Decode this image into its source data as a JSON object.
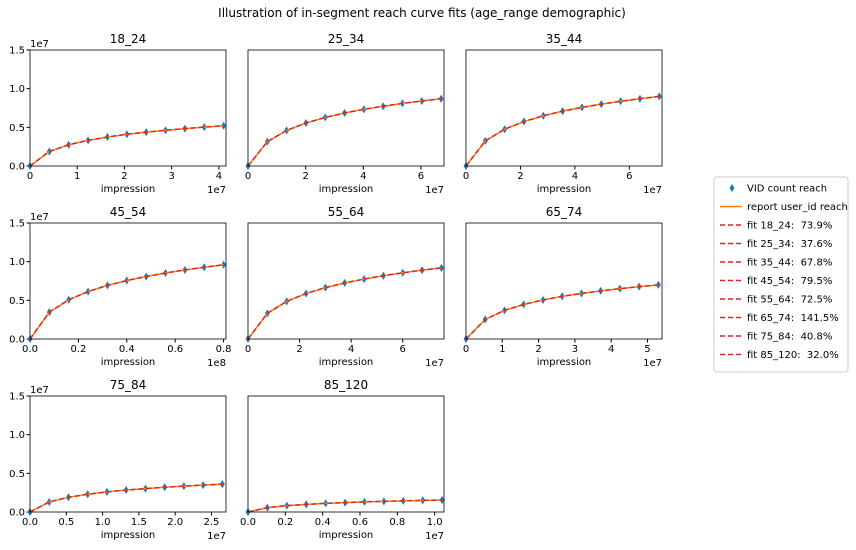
{
  "title": "Illustration of in-segment reach curve fits (age_range demographic)",
  "legend_corner": "right",
  "chart_data": [
    {
      "type": "line",
      "title": "18_24",
      "x_label": "impression",
      "x_offset": "1e7",
      "y_offset": "1e7",
      "x": [
        0,
        0.41,
        0.82,
        1.23,
        1.64,
        2.05,
        2.46,
        2.87,
        3.28,
        3.69,
        4.1
      ],
      "xlim": [
        0,
        4.15
      ],
      "xticks": [
        0,
        1,
        2,
        3,
        4
      ],
      "ylim": [
        0,
        1.5
      ],
      "yticks": [
        {
          "value": 0,
          "label": "0.0"
        },
        0.5,
        {
          "value": 1,
          "label": "1.0"
        },
        1.5
      ],
      "series": [
        {
          "name": "VID count reach",
          "style": "scatter",
          "color": "#1f77b4",
          "values": [
            0,
            0.188,
            0.275,
            0.332,
            0.375,
            0.41,
            0.438,
            0.462,
            0.484,
            0.503,
            0.52
          ]
        },
        {
          "name": "report user_id reach",
          "style": "line",
          "color": "#ff7f0e",
          "values": [
            0,
            0.188,
            0.275,
            0.332,
            0.375,
            0.41,
            0.438,
            0.462,
            0.484,
            0.503,
            0.52
          ]
        },
        {
          "name": "fit 18_24:  73.9%",
          "style": "dashed",
          "color": "#d62728",
          "values": [
            0,
            0.188,
            0.275,
            0.332,
            0.375,
            0.41,
            0.438,
            0.462,
            0.484,
            0.503,
            0.52
          ]
        }
      ]
    },
    {
      "type": "line",
      "title": "25_34",
      "x_label": "impression",
      "x_offset": "1e7",
      "x": [
        0,
        0.67,
        1.34,
        2.01,
        2.68,
        3.35,
        4.02,
        4.69,
        5.36,
        6.03,
        6.7
      ],
      "xlim": [
        0,
        6.8
      ],
      "xticks": [
        0,
        2,
        4,
        6
      ],
      "ylim": [
        0,
        1.5
      ],
      "series": [
        {
          "style": "scatter",
          "color": "#1f77b4",
          "values": [
            0,
            0.314,
            0.46,
            0.556,
            0.628,
            0.686,
            0.733,
            0.773,
            0.809,
            0.841,
            0.87
          ]
        },
        {
          "style": "line",
          "color": "#ff7f0e",
          "values": [
            0,
            0.314,
            0.46,
            0.556,
            0.628,
            0.686,
            0.733,
            0.773,
            0.809,
            0.841,
            0.87
          ]
        },
        {
          "name": "fit 25_34:  37.6%",
          "style": "dashed",
          "color": "#d62728",
          "values": [
            0,
            0.314,
            0.46,
            0.556,
            0.628,
            0.686,
            0.733,
            0.773,
            0.809,
            0.841,
            0.87
          ]
        }
      ]
    },
    {
      "type": "line",
      "title": "35_44",
      "x_label": "impression",
      "x_offset": "1e7",
      "x": [
        0,
        0.71,
        1.42,
        2.13,
        2.84,
        3.55,
        4.26,
        4.97,
        5.68,
        6.39,
        7.1
      ],
      "xlim": [
        0,
        7.2
      ],
      "xticks": [
        0,
        2,
        4,
        6
      ],
      "ylim": [
        0,
        1.5
      ],
      "series": [
        {
          "style": "scatter",
          "color": "#1f77b4",
          "values": [
            0,
            0.325,
            0.476,
            0.575,
            0.65,
            0.709,
            0.758,
            0.8,
            0.837,
            0.87,
            0.9
          ]
        },
        {
          "style": "line",
          "color": "#ff7f0e",
          "values": [
            0,
            0.325,
            0.476,
            0.575,
            0.65,
            0.709,
            0.758,
            0.8,
            0.837,
            0.87,
            0.9
          ]
        },
        {
          "name": "fit 35_44:  67.8%",
          "style": "dashed",
          "color": "#d62728",
          "values": [
            0,
            0.325,
            0.476,
            0.575,
            0.65,
            0.709,
            0.758,
            0.8,
            0.837,
            0.87,
            0.9
          ]
        }
      ]
    },
    {
      "type": "line",
      "title": "45_54",
      "x_label": "impression",
      "x_offset": "1e8",
      "y_offset": "1e7",
      "x": [
        0,
        0.08,
        0.16,
        0.24,
        0.32,
        0.4,
        0.48,
        0.56,
        0.64,
        0.72,
        0.8
      ],
      "xlim": [
        0,
        0.81
      ],
      "xticks": [
        {
          "value": 0,
          "label": "0.0"
        },
        0.2,
        0.4,
        0.6,
        0.8
      ],
      "ylim": [
        0,
        1.5
      ],
      "yticks": [
        {
          "value": 0,
          "label": "0.0"
        },
        0.5,
        {
          "value": 1,
          "label": "1.0"
        },
        1.5
      ],
      "series": [
        {
          "style": "scatter",
          "color": "#1f77b4",
          "values": [
            0,
            0.347,
            0.508,
            0.613,
            0.693,
            0.756,
            0.808,
            0.853,
            0.893,
            0.928,
            0.96
          ]
        },
        {
          "style": "line",
          "color": "#ff7f0e",
          "values": [
            0,
            0.347,
            0.508,
            0.613,
            0.693,
            0.756,
            0.808,
            0.853,
            0.893,
            0.928,
            0.96
          ]
        },
        {
          "name": "fit 45_54:  79.5%",
          "style": "dashed",
          "color": "#d62728",
          "values": [
            0,
            0.347,
            0.508,
            0.613,
            0.693,
            0.756,
            0.808,
            0.853,
            0.893,
            0.928,
            0.96
          ]
        }
      ]
    },
    {
      "type": "line",
      "title": "55_64",
      "x_label": "impression",
      "x_offset": "1e7",
      "x": [
        0,
        0.75,
        1.5,
        2.25,
        3,
        3.75,
        4.5,
        5.25,
        6,
        6.75,
        7.5
      ],
      "xlim": [
        0,
        7.6
      ],
      "xticks": [
        0,
        2,
        4,
        6
      ],
      "ylim": [
        0,
        1.5
      ],
      "series": [
        {
          "style": "scatter",
          "color": "#1f77b4",
          "values": [
            0,
            0.332,
            0.487,
            0.588,
            0.664,
            0.725,
            0.775,
            0.818,
            0.856,
            0.89,
            0.92
          ]
        },
        {
          "style": "line",
          "color": "#ff7f0e",
          "values": [
            0,
            0.332,
            0.487,
            0.588,
            0.664,
            0.725,
            0.775,
            0.818,
            0.856,
            0.89,
            0.92
          ]
        },
        {
          "name": "fit 55_64:  72.5%",
          "style": "dashed",
          "color": "#d62728",
          "values": [
            0,
            0.332,
            0.487,
            0.588,
            0.664,
            0.725,
            0.775,
            0.818,
            0.856,
            0.89,
            0.92
          ]
        }
      ]
    },
    {
      "type": "line",
      "title": "65_74",
      "x_label": "impression",
      "x_offset": "1e7",
      "x": [
        0,
        0.53,
        1.06,
        1.59,
        2.12,
        2.65,
        3.18,
        3.71,
        4.24,
        4.77,
        5.3
      ],
      "xlim": [
        0,
        5.4
      ],
      "xticks": [
        0,
        1,
        2,
        3,
        4,
        5
      ],
      "ylim": [
        0,
        1.5
      ],
      "series": [
        {
          "style": "scatter",
          "color": "#1f77b4",
          "values": [
            0,
            0.253,
            0.37,
            0.447,
            0.505,
            0.552,
            0.589,
            0.622,
            0.651,
            0.677,
            0.7
          ]
        },
        {
          "style": "line",
          "color": "#ff7f0e",
          "values": [
            0,
            0.253,
            0.37,
            0.447,
            0.505,
            0.552,
            0.589,
            0.622,
            0.651,
            0.677,
            0.7
          ]
        },
        {
          "name": "fit 65_74:  141.5%",
          "style": "dashed",
          "color": "#d62728",
          "values": [
            0,
            0.253,
            0.37,
            0.447,
            0.505,
            0.552,
            0.589,
            0.622,
            0.651,
            0.677,
            0.7
          ]
        }
      ]
    },
    {
      "type": "line",
      "title": "75_84",
      "x_label": "impression",
      "x_offset": "1e7",
      "y_offset": "1e7",
      "x": [
        0,
        0.265,
        0.53,
        0.795,
        1.06,
        1.325,
        1.59,
        1.855,
        2.12,
        2.385,
        2.65
      ],
      "xlim": [
        0,
        2.7
      ],
      "xticks": [
        {
          "value": 0,
          "label": "0.0"
        },
        0.5,
        {
          "value": 1,
          "label": "1.0"
        },
        1.5,
        {
          "value": 2,
          "label": "2.0"
        },
        2.5
      ],
      "ylim": [
        0,
        1.5
      ],
      "yticks": [
        {
          "value": 0,
          "label": "0.0"
        },
        0.5,
        {
          "value": 1,
          "label": "1.0"
        },
        1.5
      ],
      "series": [
        {
          "style": "scatter",
          "color": "#1f77b4",
          "values": [
            0,
            0.13,
            0.19,
            0.23,
            0.26,
            0.284,
            0.303,
            0.32,
            0.335,
            0.348,
            0.36
          ]
        },
        {
          "style": "line",
          "color": "#ff7f0e",
          "values": [
            0,
            0.13,
            0.19,
            0.23,
            0.26,
            0.284,
            0.303,
            0.32,
            0.335,
            0.348,
            0.36
          ]
        },
        {
          "name": "fit 75_84:  40.8%",
          "style": "dashed",
          "color": "#d62728",
          "values": [
            0,
            0.13,
            0.19,
            0.23,
            0.26,
            0.284,
            0.303,
            0.32,
            0.335,
            0.348,
            0.36
          ]
        }
      ]
    },
    {
      "type": "line",
      "title": "85_120",
      "x_label": "impression",
      "x_offset": "1e7",
      "x": [
        0,
        0.104,
        0.208,
        0.312,
        0.416,
        0.52,
        0.624,
        0.728,
        0.832,
        0.936,
        1.04
      ],
      "xlim": [
        0,
        1.05
      ],
      "xticks": [
        {
          "value": 0,
          "label": "0.0"
        },
        0.2,
        0.4,
        0.6,
        0.8,
        {
          "value": 1,
          "label": "1.0"
        }
      ],
      "ylim": [
        0,
        1.5
      ],
      "series": [
        {
          "style": "scatter",
          "color": "#1f77b4",
          "values": [
            0,
            0.056,
            0.082,
            0.099,
            0.112,
            0.122,
            0.131,
            0.138,
            0.144,
            0.15,
            0.155
          ]
        },
        {
          "style": "line",
          "color": "#ff7f0e",
          "values": [
            0,
            0.056,
            0.082,
            0.099,
            0.112,
            0.122,
            0.131,
            0.138,
            0.144,
            0.15,
            0.155
          ]
        },
        {
          "name": "fit 85_120:  32.0%",
          "style": "dashed",
          "color": "#d62728",
          "values": [
            0,
            0.056,
            0.082,
            0.099,
            0.112,
            0.122,
            0.131,
            0.138,
            0.144,
            0.15,
            0.155
          ]
        }
      ]
    }
  ]
}
